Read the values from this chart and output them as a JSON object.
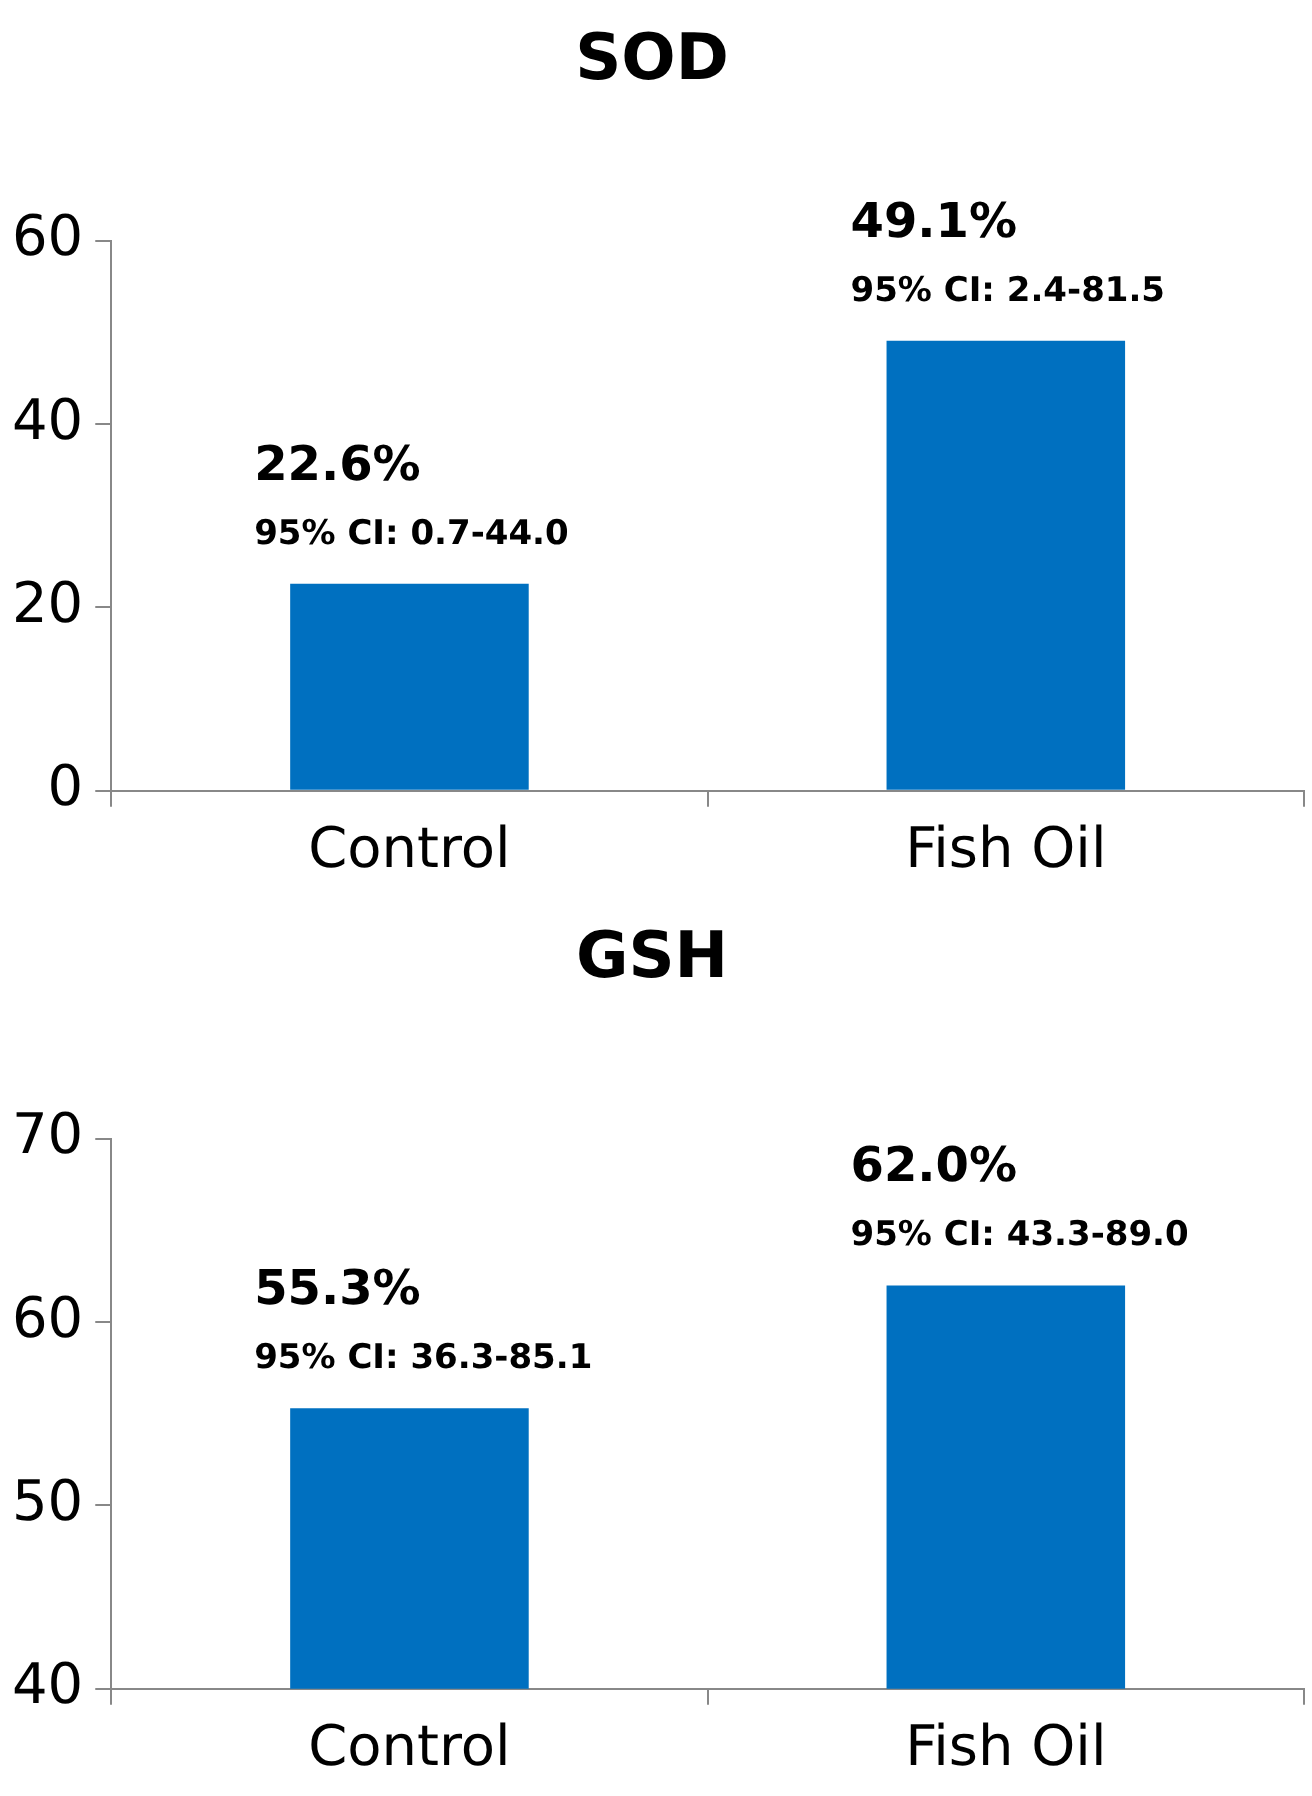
{
  "chart_data": [
    {
      "type": "bar",
      "title": "SOD",
      "categories": [
        "Control",
        "Fish Oil"
      ],
      "values": [
        22.6,
        49.1
      ],
      "color": "#0070c0",
      "ylim": [
        0,
        60
      ],
      "yticks": [
        0,
        20,
        40,
        60
      ],
      "value_labels": [
        "22.6%",
        "49.1%"
      ],
      "annotations": [
        {
          "text": "95% CI: 0.7-44.0",
          "x": "Control",
          "y": 22.6
        },
        {
          "text": "95% CI: 2.4-81.5",
          "x": "Fish Oil",
          "y": 49.1
        }
      ]
    },
    {
      "type": "bar",
      "title": "GSH",
      "categories": [
        "Control",
        "Fish Oil"
      ],
      "values": [
        55.3,
        62.0
      ],
      "color": "#0070c0",
      "ylim": [
        40,
        70
      ],
      "yticks": [
        40,
        50,
        60,
        70
      ],
      "value_labels": [
        "55.3%",
        "62.0%"
      ],
      "annotations": [
        {
          "text": "95% CI: 36.3-85.1",
          "x": "Control",
          "y": 55.3
        },
        {
          "text": "95% CI: 43.3-89.0",
          "x": "Fish Oil",
          "y": 62.0
        }
      ]
    }
  ]
}
